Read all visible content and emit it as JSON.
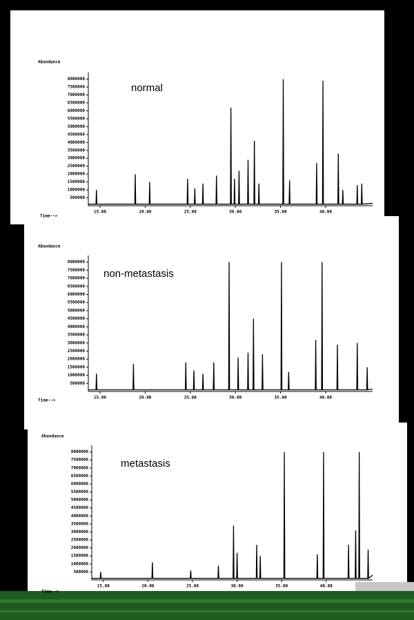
{
  "chart_data": [
    {
      "type": "line",
      "title": "normal",
      "ylabel": "Abundance",
      "xlabel": "Time-->",
      "xlim": [
        13.7,
        45.2
      ],
      "ylim": [
        0,
        8200000
      ],
      "yticks": [
        500000,
        1000000,
        1500000,
        2000000,
        2500000,
        3000000,
        3500000,
        4000000,
        4500000,
        5000000,
        5500000,
        6000000,
        6500000,
        7000000,
        7500000,
        8000000
      ],
      "xticks": [
        {
          "value": 15,
          "label": "15.00"
        },
        {
          "value": 20,
          "label": "20.00"
        },
        {
          "value": 25,
          "label": "25.00"
        },
        {
          "value": 30,
          "label": "30.00"
        },
        {
          "value": 35,
          "label": "35.00"
        },
        {
          "value": 40,
          "label": "40.00"
        }
      ],
      "color": "#000000",
      "x": [
        13.7,
        14.55,
        14.6,
        14.65,
        18.85,
        18.9,
        18.95,
        20.45,
        20.5,
        20.55,
        24.65,
        24.7,
        24.75,
        25.45,
        25.5,
        25.55,
        26.35,
        26.4,
        26.45,
        27.85,
        27.9,
        27.95,
        29.45,
        29.5,
        29.55,
        29.85,
        29.9,
        29.95,
        30.35,
        30.4,
        30.45,
        31.35,
        31.4,
        31.45,
        32.05,
        32.1,
        32.15,
        32.55,
        32.6,
        32.65,
        35.25,
        35.3,
        35.35,
        35.95,
        36.0,
        36.05,
        38.95,
        39.0,
        39.05,
        39.65,
        39.7,
        39.75,
        41.35,
        41.4,
        41.45,
        41.85,
        41.9,
        41.95,
        43.45,
        43.5,
        43.55,
        43.95,
        44.0,
        44.05,
        45.2
      ],
      "values": [
        100000,
        100000,
        1000000,
        100000,
        100000,
        2000000,
        100000,
        100000,
        1500000,
        100000,
        100000,
        1700000,
        100000,
        100000,
        1100000,
        100000,
        100000,
        1400000,
        100000,
        100000,
        1900000,
        100000,
        100000,
        6200000,
        100000,
        100000,
        1700000,
        100000,
        100000,
        2200000,
        100000,
        100000,
        2900000,
        100000,
        100000,
        4100000,
        100000,
        100000,
        1400000,
        100000,
        100000,
        8000000,
        100000,
        100000,
        1600000,
        100000,
        100000,
        2700000,
        100000,
        100000,
        7900000,
        100000,
        100000,
        3300000,
        100000,
        100000,
        1000000,
        100000,
        100000,
        1300000,
        100000,
        100000,
        1400000,
        100000,
        150000
      ]
    },
    {
      "type": "line",
      "title": "non-metastasis",
      "ylabel": "Abundance",
      "xlabel": "Time-->",
      "xlim": [
        13.7,
        45.2
      ],
      "ylim": [
        0,
        8200000
      ],
      "yticks": [
        500000,
        1000000,
        1500000,
        2000000,
        2500000,
        3000000,
        3500000,
        4000000,
        4500000,
        5000000,
        5500000,
        6000000,
        6500000,
        7000000,
        7500000,
        8000000
      ],
      "xticks": [
        {
          "value": 15,
          "label": "15.00"
        },
        {
          "value": 20,
          "label": "20.00"
        },
        {
          "value": 25,
          "label": "25.00"
        },
        {
          "value": 30,
          "label": "30.00"
        },
        {
          "value": 35,
          "label": "35.00"
        },
        {
          "value": 40,
          "label": "40.00"
        }
      ],
      "color": "#000000",
      "x": [
        13.7,
        14.55,
        14.6,
        14.65,
        18.65,
        18.7,
        18.75,
        24.45,
        24.5,
        24.55,
        25.35,
        25.4,
        25.45,
        26.35,
        26.4,
        26.45,
        27.55,
        27.6,
        27.65,
        29.25,
        29.3,
        29.35,
        30.25,
        30.3,
        30.35,
        31.35,
        31.4,
        31.45,
        31.95,
        32.0,
        32.05,
        32.95,
        33.0,
        33.05,
        35.05,
        35.1,
        35.15,
        35.85,
        35.9,
        35.95,
        38.85,
        38.9,
        38.95,
        39.55,
        39.6,
        39.65,
        41.25,
        41.3,
        41.35,
        43.45,
        43.5,
        43.55,
        44.55,
        44.6,
        44.65,
        45.2
      ],
      "values": [
        100000,
        100000,
        1100000,
        100000,
        100000,
        1700000,
        100000,
        100000,
        1800000,
        100000,
        100000,
        1300000,
        100000,
        100000,
        1100000,
        100000,
        100000,
        1800000,
        100000,
        100000,
        8000000,
        100000,
        100000,
        2100000,
        100000,
        100000,
        2400000,
        100000,
        100000,
        4500000,
        100000,
        100000,
        2300000,
        100000,
        100000,
        8000000,
        100000,
        100000,
        1200000,
        100000,
        100000,
        3200000,
        100000,
        100000,
        8000000,
        100000,
        100000,
        2900000,
        100000,
        100000,
        3000000,
        100000,
        100000,
        1500000,
        100000,
        150000
      ]
    },
    {
      "type": "line",
      "title": "metastasis",
      "ylabel": "Abundance",
      "xlabel": "Time-->",
      "xlim": [
        13.7,
        45.2
      ],
      "ylim": [
        0,
        8200000
      ],
      "yticks": [
        500000,
        1000000,
        1500000,
        2000000,
        2500000,
        3000000,
        3500000,
        4000000,
        4500000,
        5000000,
        5500000,
        6000000,
        6500000,
        7000000,
        7500000,
        8000000
      ],
      "xticks": [
        {
          "value": 15,
          "label": "15.00"
        },
        {
          "value": 20,
          "label": "20.00"
        },
        {
          "value": 25,
          "label": "25.00"
        },
        {
          "value": 30,
          "label": "30.00"
        },
        {
          "value": 35,
          "label": "35.00"
        },
        {
          "value": 40,
          "label": "40.00"
        }
      ],
      "color": "#000000",
      "x": [
        13.7,
        14.65,
        14.7,
        14.75,
        20.45,
        20.5,
        20.55,
        24.75,
        24.8,
        24.85,
        27.85,
        27.9,
        27.95,
        29.55,
        29.6,
        29.65,
        29.95,
        30.0,
        30.05,
        32.15,
        32.2,
        32.25,
        32.55,
        32.6,
        32.65,
        35.25,
        35.3,
        35.35,
        38.95,
        39.0,
        39.05,
        39.65,
        39.7,
        39.75,
        42.45,
        42.5,
        42.55,
        43.25,
        43.3,
        43.35,
        43.65,
        43.7,
        43.75,
        44.65,
        44.7,
        44.75,
        45.2
      ],
      "values": [
        100000,
        100000,
        500000,
        100000,
        100000,
        1100000,
        100000,
        100000,
        600000,
        100000,
        100000,
        900000,
        100000,
        100000,
        3400000,
        100000,
        100000,
        1700000,
        100000,
        100000,
        2200000,
        100000,
        100000,
        1500000,
        100000,
        100000,
        8000000,
        100000,
        100000,
        1600000,
        100000,
        100000,
        8000000,
        100000,
        100000,
        2200000,
        100000,
        100000,
        3100000,
        100000,
        100000,
        8000000,
        100000,
        100000,
        1900000,
        100000,
        300000
      ]
    }
  ]
}
